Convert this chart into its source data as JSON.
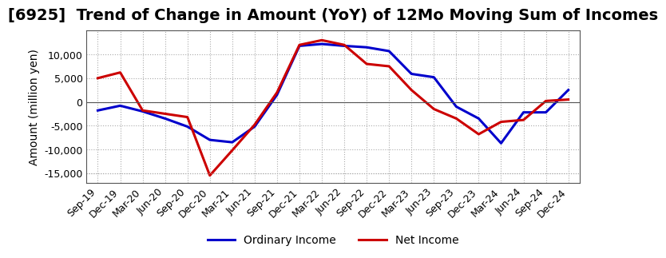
{
  "title": "[6925]  Trend of Change in Amount (YoY) of 12Mo Moving Sum of Incomes",
  "ylabel": "Amount (million yen)",
  "labels": [
    "Sep-19",
    "Dec-19",
    "Mar-20",
    "Jun-20",
    "Sep-20",
    "Dec-20",
    "Mar-21",
    "Jun-21",
    "Sep-21",
    "Dec-21",
    "Mar-22",
    "Jun-22",
    "Sep-22",
    "Dec-22",
    "Mar-23",
    "Jun-23",
    "Sep-23",
    "Dec-23",
    "Mar-24",
    "Jun-24",
    "Sep-24",
    "Dec-24"
  ],
  "ordinary_income": [
    -1800,
    -800,
    -2000,
    -3500,
    -5200,
    -8000,
    -8500,
    -5200,
    1500,
    11800,
    12200,
    11800,
    11500,
    10700,
    5900,
    5200,
    -1000,
    -3500,
    -8700,
    -2200,
    -2200,
    2500
  ],
  "net_income": [
    5000,
    6200,
    -1800,
    -2500,
    -3200,
    -15500,
    -10200,
    -4800,
    2000,
    12000,
    13000,
    12000,
    8000,
    7500,
    2500,
    -1500,
    -3500,
    -6800,
    -4200,
    -3800,
    200,
    500
  ],
  "ordinary_color": "#0000CC",
  "net_color": "#CC0000",
  "ylim": [
    -17000,
    15000
  ],
  "yticks": [
    -15000,
    -10000,
    -5000,
    0,
    5000,
    10000
  ],
  "grid_color": "#AAAAAA",
  "background_color": "#FFFFFF",
  "title_fontsize": 14,
  "axis_fontsize": 10,
  "tick_fontsize": 9
}
